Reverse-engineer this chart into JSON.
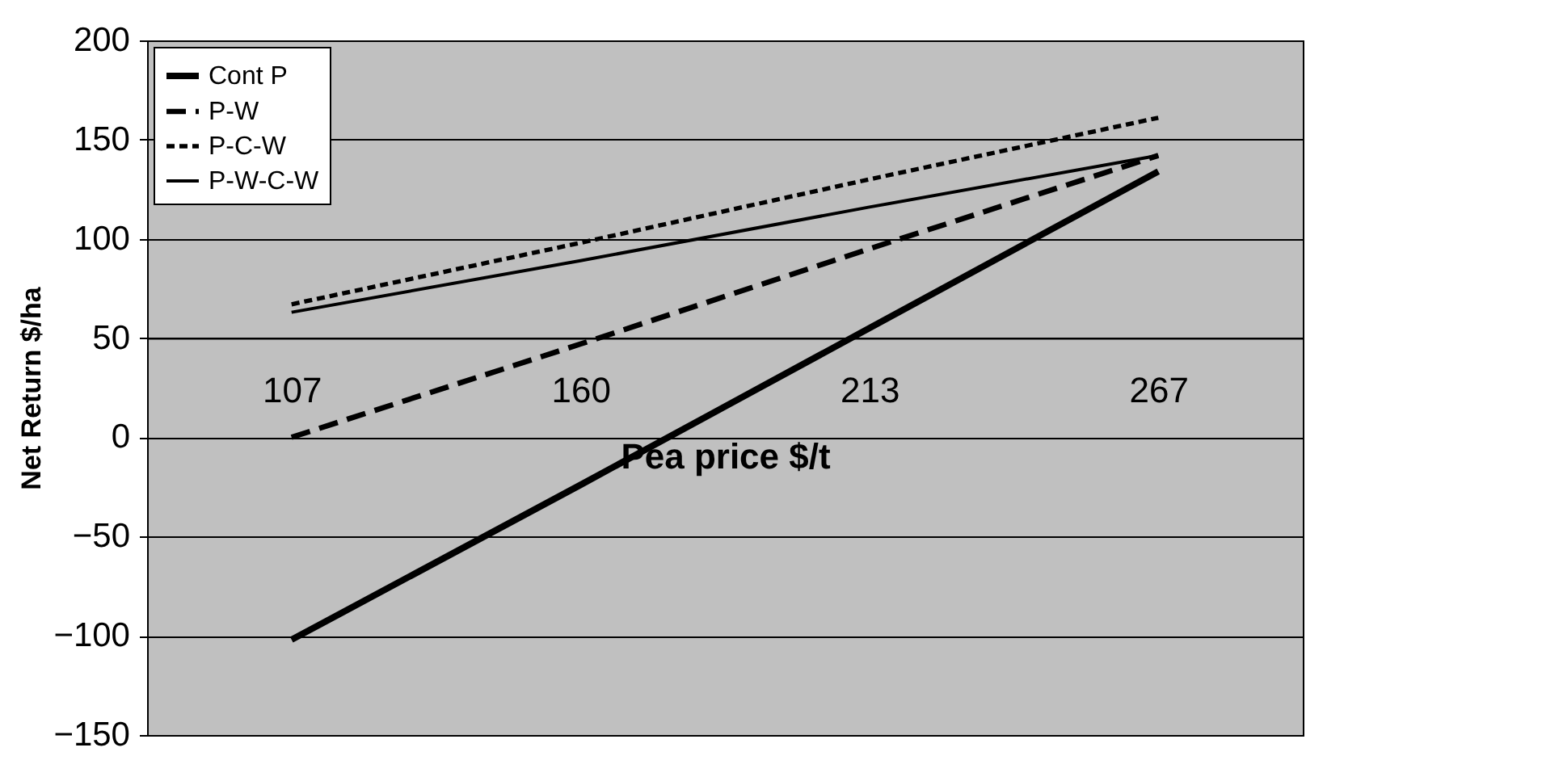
{
  "chart_data": {
    "type": "line",
    "xlabel": "Pea price $/t",
    "ylabel": "Net Return $/ha",
    "categories": [
      "107",
      "160",
      "213",
      "267"
    ],
    "ylim": [
      -150,
      200
    ],
    "yticks": [
      -150,
      -100,
      -50,
      0,
      50,
      100,
      150,
      200
    ],
    "grid": "y",
    "legend": "top left",
    "marker": "none",
    "series": [
      {
        "name": "Cont P",
        "color": "#000000",
        "line_style": "solid",
        "values": [
          -102,
          -24,
          55,
          134
        ]
      },
      {
        "name": "P-W",
        "color": "#000000",
        "line_style": "dashed",
        "values": [
          0,
          47,
          95,
          142
        ]
      },
      {
        "name": "P-C-W",
        "color": "#000000",
        "line_style": "dotted",
        "values": [
          67,
          98,
          130,
          161
        ]
      },
      {
        "name": "P-W-C-W",
        "color": "#000000",
        "line_style": "solid",
        "values": [
          63,
          89,
          116,
          142
        ]
      }
    ]
  }
}
